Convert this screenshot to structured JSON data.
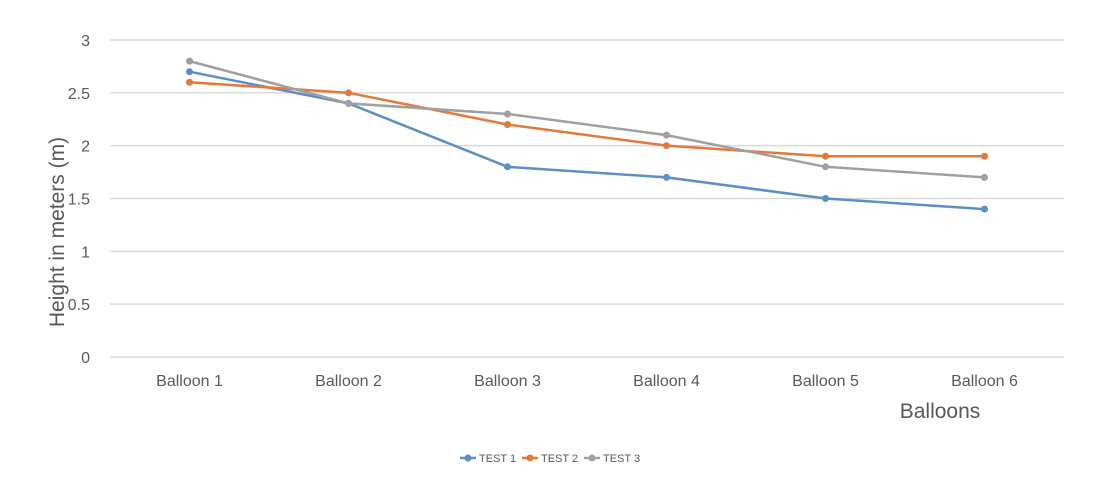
{
  "chart_data": {
    "type": "line",
    "title": "",
    "xlabel": "Balloons",
    "ylabel": "Height in meters (m)",
    "categories": [
      "Balloon 1",
      "Balloon 2",
      "Balloon 3",
      "Balloon 4",
      "Balloon 5",
      "Balloon 6"
    ],
    "ylim": [
      0,
      3
    ],
    "yticks": [
      "0",
      "0.5",
      "1",
      "1.5",
      "2",
      "2.5",
      "3"
    ],
    "grid": true,
    "legend_position": "bottom",
    "series": [
      {
        "name": "TEST 1",
        "color": "#5b8fc7",
        "values": [
          2.7,
          2.4,
          1.8,
          1.7,
          1.5,
          1.4
        ]
      },
      {
        "name": "TEST 2",
        "color": "#e07b39",
        "values": [
          2.6,
          2.5,
          2.2,
          2.0,
          1.9,
          1.9
        ]
      },
      {
        "name": "TEST 3",
        "color": "#a0a0a0",
        "values": [
          2.8,
          2.4,
          2.3,
          2.1,
          1.8,
          1.7
        ]
      }
    ],
    "gridline_color": "#d9d9d9"
  }
}
